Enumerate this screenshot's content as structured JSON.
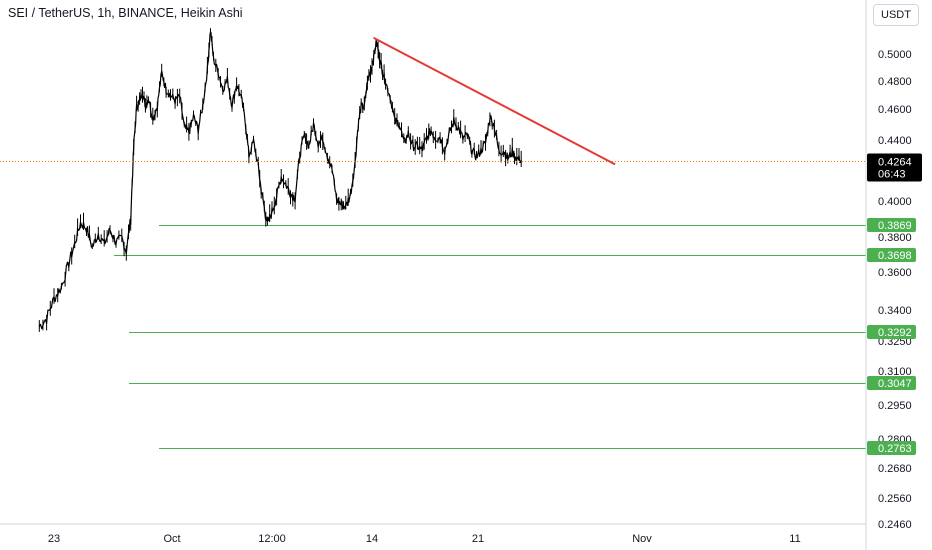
{
  "header": {
    "title": "SEI / TetherUS, 1h, BINANCE, Heikin Ashi",
    "currency": "USDT"
  },
  "colors": {
    "price_line": "#000000",
    "trendline": "#e53935",
    "level_line": "#4caf50",
    "level_badge": "#4caf50",
    "current_price_line": "#f57c00",
    "current_badge": "#000000"
  },
  "chart_data": {
    "type": "line",
    "y_axis_labels": [
      "0.5000",
      "0.4800",
      "0.4600",
      "0.4400",
      "0.4000",
      "0.3800",
      "0.3600",
      "0.3400",
      "0.3250",
      "0.3100",
      "0.2950",
      "0.2800",
      "0.2680",
      "0.2560",
      "0.2460"
    ],
    "x_axis_labels": [
      "23",
      "Oct",
      "12:00",
      "14",
      "21",
      "Nov",
      "11"
    ],
    "current_price": {
      "value": "0.4264",
      "countdown": "06:43"
    },
    "levels": [
      {
        "label": "0.3869",
        "value": 0.3869
      },
      {
        "label": "0.3698",
        "value": 0.3698
      },
      {
        "label": "0.3292",
        "value": 0.3292
      },
      {
        "label": "0.3047",
        "value": 0.3047
      },
      {
        "label": "0.2763",
        "value": 0.2763
      }
    ],
    "trendline": {
      "start": [
        14.1,
        0.512
      ],
      "end": [
        30.2,
        0.424
      ]
    },
    "series": [
      {
        "points": [
          [
            -8.0,
            0.332
          ],
          [
            -7.5,
            0.336
          ],
          [
            -7.0,
            0.346
          ],
          [
            -6.5,
            0.352
          ],
          [
            -6.0,
            0.365
          ],
          [
            -5.6,
            0.376
          ],
          [
            -5.2,
            0.388
          ],
          [
            -4.8,
            0.385
          ],
          [
            -4.4,
            0.374
          ],
          [
            -4.0,
            0.382
          ],
          [
            -3.6,
            0.376
          ],
          [
            -3.2,
            0.384
          ],
          [
            -2.8,
            0.377
          ],
          [
            -2.4,
            0.379
          ],
          [
            -2.1,
            0.372
          ],
          [
            -1.8,
            0.39
          ],
          [
            -1.6,
            0.435
          ],
          [
            -1.4,
            0.461
          ],
          [
            -1.2,
            0.466
          ],
          [
            -1.0,
            0.472
          ],
          [
            -0.8,
            0.462
          ],
          [
            -0.6,
            0.468
          ],
          [
            -0.3,
            0.454
          ],
          [
            0.0,
            0.462
          ],
          [
            0.3,
            0.486
          ],
          [
            0.6,
            0.474
          ],
          [
            0.9,
            0.47
          ],
          [
            1.2,
            0.466
          ],
          [
            1.5,
            0.469
          ],
          [
            1.8,
            0.448
          ],
          [
            2.1,
            0.445
          ],
          [
            2.4,
            0.455
          ],
          [
            2.7,
            0.447
          ],
          [
            3.0,
            0.462
          ],
          [
            3.3,
            0.488
          ],
          [
            3.5,
            0.518
          ],
          [
            3.7,
            0.496
          ],
          [
            4.0,
            0.487
          ],
          [
            4.3,
            0.474
          ],
          [
            4.6,
            0.481
          ],
          [
            4.9,
            0.463
          ],
          [
            5.2,
            0.478
          ],
          [
            5.5,
            0.468
          ],
          [
            5.8,
            0.449
          ],
          [
            6.0,
            0.43
          ],
          [
            6.3,
            0.439
          ],
          [
            6.6,
            0.423
          ],
          [
            6.8,
            0.407
          ],
          [
            7.0,
            0.396
          ],
          [
            7.2,
            0.387
          ],
          [
            7.5,
            0.394
          ],
          [
            7.8,
            0.403
          ],
          [
            8.1,
            0.416
          ],
          [
            8.4,
            0.411
          ],
          [
            8.7,
            0.405
          ],
          [
            9.0,
            0.402
          ],
          [
            9.3,
            0.43
          ],
          [
            9.6,
            0.443
          ],
          [
            9.9,
            0.436
          ],
          [
            10.2,
            0.45
          ],
          [
            10.5,
            0.438
          ],
          [
            10.8,
            0.441
          ],
          [
            11.1,
            0.43
          ],
          [
            11.4,
            0.421
          ],
          [
            11.7,
            0.401
          ],
          [
            12.0,
            0.398
          ],
          [
            12.3,
            0.397
          ],
          [
            12.6,
            0.404
          ],
          [
            12.9,
            0.425
          ],
          [
            13.1,
            0.45
          ],
          [
            13.3,
            0.462
          ],
          [
            13.5,
            0.461
          ],
          [
            13.7,
            0.48
          ],
          [
            13.9,
            0.487
          ],
          [
            14.1,
            0.498
          ],
          [
            14.3,
            0.509
          ],
          [
            14.5,
            0.497
          ],
          [
            14.7,
            0.487
          ],
          [
            14.9,
            0.479
          ],
          [
            15.2,
            0.469
          ],
          [
            15.5,
            0.452
          ],
          [
            15.8,
            0.451
          ],
          [
            16.1,
            0.438
          ],
          [
            16.4,
            0.444
          ],
          [
            16.7,
            0.436
          ],
          [
            17.0,
            0.436
          ],
          [
            17.3,
            0.433
          ],
          [
            17.6,
            0.441
          ],
          [
            17.9,
            0.446
          ],
          [
            18.2,
            0.441
          ],
          [
            18.5,
            0.442
          ],
          [
            18.8,
            0.433
          ],
          [
            19.1,
            0.444
          ],
          [
            19.4,
            0.452
          ],
          [
            19.7,
            0.448
          ],
          [
            20.0,
            0.441
          ],
          [
            20.3,
            0.443
          ],
          [
            20.6,
            0.433
          ],
          [
            20.9,
            0.429
          ],
          [
            21.2,
            0.433
          ],
          [
            21.5,
            0.438
          ],
          [
            21.8,
            0.455
          ],
          [
            22.1,
            0.449
          ],
          [
            22.4,
            0.432
          ],
          [
            22.7,
            0.433
          ],
          [
            23.0,
            0.428
          ],
          [
            23.3,
            0.432
          ],
          [
            23.6,
            0.428
          ],
          [
            23.9,
            0.427
          ]
        ]
      }
    ]
  }
}
